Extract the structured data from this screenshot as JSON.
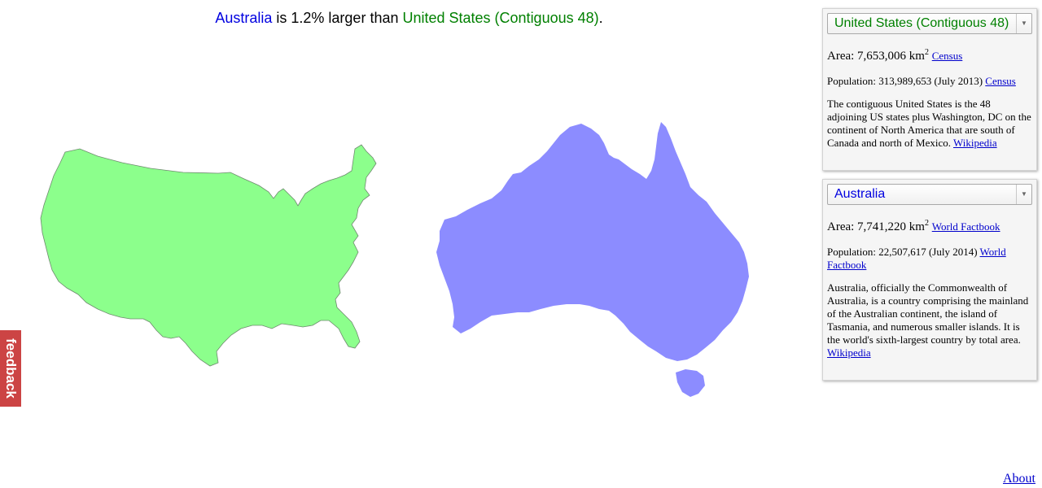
{
  "headline": {
    "country_a": "Australia",
    "mid_text": " is 1.2% larger than ",
    "country_b": "United States (Contiguous 48)",
    "end": "."
  },
  "colors": {
    "us_fill": "#8cff8c",
    "au_fill": "#8c8cff",
    "us_text": "#008000",
    "au_text": "#0000e0"
  },
  "panel_us": {
    "select_value": "United States (Contiguous 48)",
    "area_label": "Area: 7,653,006 km",
    "area_sup": "2",
    "area_source": "Census",
    "population_label": "Population: 313,989,653 (July 2013)",
    "population_source": "Census",
    "description": "The contiguous United States is the 48 adjoining US states plus Washington, DC on the continent of North America that are south of Canada and north of Mexico.",
    "description_source": "Wikipedia"
  },
  "panel_au": {
    "select_value": "Australia",
    "area_label": "Area: 7,741,220 km",
    "area_sup": "2",
    "area_source": "World Factbook",
    "population_label": "Population: 22,507,617 (July 2014)",
    "population_source": "World Factbook",
    "description": "Australia, officially the Commonwealth of Australia, is a country comprising the mainland of the Australian continent, the island of Tasmania, and numerous smaller islands. It is the world's sixth-largest country by total area.",
    "description_source": "Wikipedia"
  },
  "feedback_label": "feedback",
  "about_label": "About",
  "icons": {
    "dropdown": "chevron-down-icon"
  }
}
